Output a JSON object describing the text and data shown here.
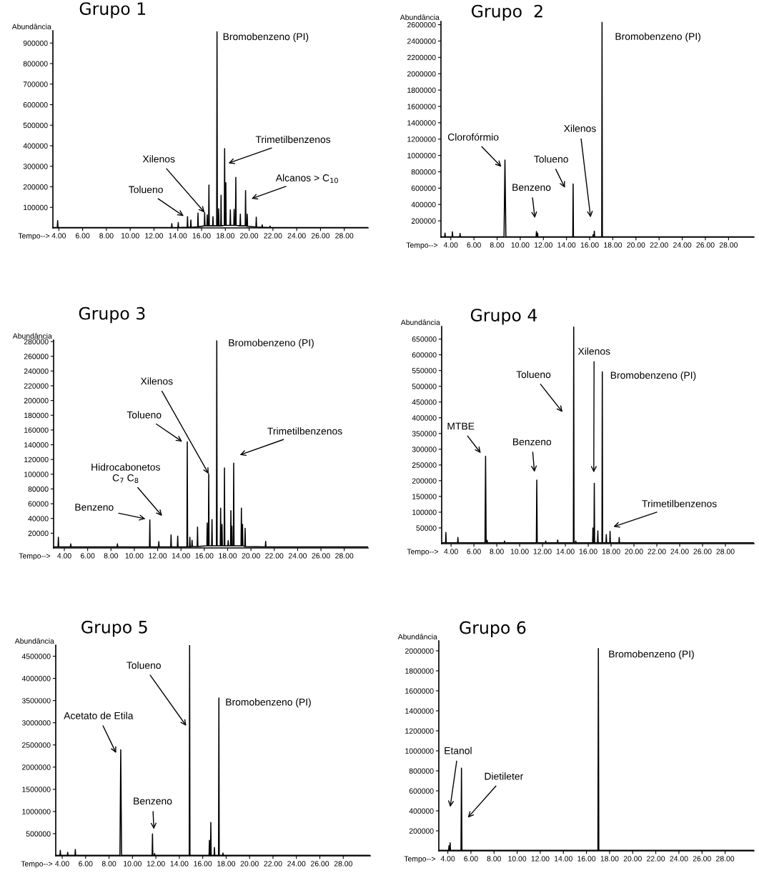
{
  "chart_data": [
    {
      "type": "line",
      "title": "Grupo 1",
      "xlabel": "Tempo-->",
      "ylabel": "Abundância",
      "xlim": [
        3.5,
        30
      ],
      "ylim": [
        0,
        960000
      ],
      "xticks": [
        {
          "value": 4,
          "label": "4.00"
        },
        {
          "value": 6,
          "label": "6.00"
        },
        {
          "value": 8,
          "label": "8.00"
        },
        {
          "value": 10,
          "label": "10.00"
        },
        {
          "value": 12,
          "label": "12.00"
        },
        {
          "value": 14,
          "label": "14.00"
        },
        {
          "value": 16,
          "label": "16.00"
        },
        {
          "value": 18,
          "label": "18.00"
        },
        {
          "value": 20,
          "label": "20.00"
        },
        {
          "value": 22,
          "label": "22.00"
        },
        {
          "value": 24,
          "label": "24.00"
        },
        {
          "value": 26,
          "label": "26.00"
        },
        {
          "value": 28,
          "label": "28.00"
        }
      ],
      "yticks": [
        100000,
        200000,
        300000,
        400000,
        500000,
        600000,
        700000,
        800000,
        900000
      ],
      "series": [
        {
          "color": "#000000",
          "x": [
            3.5,
            3.87,
            3.9,
            3.93,
            13.47,
            13.5,
            13.53,
            14.01,
            14.04,
            14.07,
            14.79,
            14.82,
            14.85,
            15.07,
            15.1,
            15.13,
            15.67,
            15.7,
            15.73,
            16.23,
            16.26,
            16.29,
            16.45,
            16.48,
            16.51,
            16.59,
            16.62,
            16.65,
            16.93,
            16.96,
            16.99,
            17.27,
            17.3,
            17.33,
            17.41,
            17.44,
            17.47,
            17.61,
            17.64,
            17.67,
            17.91,
            17.94,
            17.97,
            18.01,
            18.04,
            18.07,
            18.39,
            18.42,
            18.45,
            18.71,
            18.74,
            18.77,
            18.85,
            18.88,
            18.91,
            19.23,
            19.26,
            19.29,
            19.67,
            19.7,
            19.73,
            19.81,
            19.84,
            19.87,
            20.57,
            20.6,
            20.63,
            21.07,
            21.1,
            21.13,
            21.73,
            21.76,
            21.79,
            30
          ],
          "values": [
            2000,
            2000,
            36000,
            2000,
            2000,
            21000,
            2000,
            2000,
            26000,
            2000,
            3000,
            55000,
            3000,
            3000,
            38000,
            3000,
            5000,
            72000,
            5000,
            10000,
            75000,
            10000,
            10000,
            63000,
            10000,
            10000,
            209000,
            10000,
            10000,
            55000,
            10000,
            10000,
            955000,
            10000,
            10000,
            93000,
            10000,
            10000,
            159000,
            10000,
            12000,
            386000,
            12000,
            12000,
            220000,
            12000,
            12000,
            88000,
            12000,
            12000,
            90000,
            12000,
            12000,
            246000,
            12000,
            10000,
            67000,
            10000,
            10000,
            182000,
            10000,
            8000,
            67000,
            8000,
            4000,
            52000,
            4000,
            3000,
            15000,
            3000,
            2000,
            9000,
            2000,
            2000
          ]
        }
      ],
      "annotations": [
        "Tolueno",
        {
          "text": "Xilenos",
          "x": 16.26,
          "y": 75000
        },
        "Trimetilbenzenos",
        "Alcanos > C$_{10}$",
        {
          "text": "Bromobenzeno (PI)",
          "x": 17.3,
          "y": 955000
        }
      ]
    },
    {
      "type": "line",
      "title": "Grupo  2",
      "xlabel": "Tempo-->",
      "ylabel": "Abundância",
      "xlim": [
        3.15,
        30.2
      ],
      "ylim": [
        0,
        2640000
      ],
      "xticks": [
        {
          "value": 4,
          "label": "4.00"
        },
        {
          "value": 6,
          "label": "6.00"
        },
        {
          "value": 8,
          "label": "8.00"
        },
        {
          "value": 10,
          "label": "10.00"
        },
        {
          "value": 12,
          "label": "12.00"
        },
        {
          "value": 14,
          "label": "14.00"
        },
        {
          "value": 16,
          "label": "16.00"
        },
        {
          "value": 18,
          "label": "18.00"
        },
        {
          "value": 20,
          "label": "20.00"
        },
        {
          "value": 22,
          "label": "22.00"
        },
        {
          "value": 24,
          "label": "24.00"
        },
        {
          "value": 26,
          "label": "26.00"
        },
        {
          "value": 28,
          "label": "28.00"
        }
      ],
      "yticks": [
        200000,
        400000,
        600000,
        800000,
        1000000,
        1200000,
        1400000,
        1600000,
        1800000,
        2000000,
        2200000,
        2400000,
        2600000
      ],
      "series": [
        {
          "color": "#000000",
          "x": [
            3.15,
            3.47,
            3.5,
            3.53,
            4.11,
            4.14,
            4.17,
            4.77,
            4.8,
            4.83,
            8.6,
            8.68,
            8.76,
            11.37,
            11.4,
            11.43,
            11.47,
            11.5,
            11.53,
            14.54,
            14.57,
            14.6,
            16.27,
            16.3,
            16.33,
            16.37,
            16.4,
            16.43,
            17.04,
            17.07,
            17.1,
            30.2
          ],
          "values": [
            5000,
            5000,
            50000,
            5000,
            5000,
            66000,
            5000,
            5000,
            46000,
            5000,
            5000,
            943000,
            5000,
            5000,
            69000,
            5000,
            5000,
            50000,
            5000,
            5000,
            652000,
            5000,
            5000,
            31000,
            5000,
            5000,
            75000,
            5000,
            5000,
            2630000,
            5000,
            5000
          ]
        }
      ],
      "annotations": [
        "Clorofórmio",
        "Benzeno",
        "Tolueno",
        "Xilenos",
        {
          "text": "Bromobenzeno (PI)",
          "x": 17.07,
          "y": 2630000
        }
      ]
    },
    {
      "type": "line",
      "title": "Grupo 3",
      "xlabel": "Tempo-->",
      "ylabel": "Abundância",
      "xlim": [
        3.08,
        30.04
      ],
      "ylim": [
        0,
        282000
      ],
      "xticks": [
        {
          "value": 4,
          "label": "4.00"
        },
        {
          "value": 6,
          "label": "6.00"
        },
        {
          "value": 8,
          "label": "8.00"
        },
        {
          "value": 10,
          "label": "10.00"
        },
        {
          "value": 12,
          "label": "12.00"
        },
        {
          "value": 14,
          "label": "14.00"
        },
        {
          "value": 16,
          "label": "16.00"
        },
        {
          "value": 18,
          "label": "18.00"
        },
        {
          "value": 20,
          "label": "20.00"
        },
        {
          "value": 22,
          "label": "22.00"
        },
        {
          "value": 24,
          "label": "24.00"
        },
        {
          "value": 26,
          "label": "26.00"
        },
        {
          "value": 28,
          "label": "28.00"
        }
      ],
      "yticks": [
        20000,
        40000,
        60000,
        80000,
        100000,
        120000,
        140000,
        160000,
        180000,
        200000,
        220000,
        240000,
        260000,
        280000
      ],
      "series": [
        {
          "color": "#000000",
          "x": [
            3.08,
            3.46,
            3.49,
            3.52,
            4.52,
            4.55,
            4.58,
            8.52,
            8.55,
            8.58,
            11.3,
            11.33,
            11.36,
            12.07,
            12.1,
            12.13,
            13.12,
            13.15,
            13.18,
            13.69,
            13.72,
            13.75,
            14.51,
            14.54,
            14.57,
            14.73,
            14.76,
            14.79,
            14.92,
            14.95,
            14.98,
            15.39,
            15.42,
            15.45,
            16.22,
            16.25,
            16.28,
            16.35,
            16.38,
            16.41,
            16.63,
            16.66,
            16.69,
            17.04,
            17.07,
            17.1,
            17.37,
            17.4,
            17.43,
            17.49,
            17.52,
            17.55,
            17.7,
            17.73,
            17.76,
            18.02,
            18.05,
            18.08,
            18.25,
            18.28,
            18.31,
            18.33,
            18.36,
            18.39,
            18.49,
            18.52,
            18.55,
            19.15,
            19.18,
            19.21,
            19.25,
            19.28,
            19.31,
            19.47,
            19.5,
            19.53,
            21.23,
            21.26,
            21.29,
            30.04
          ],
          "values": [
            1500,
            1500,
            14500,
            1500,
            1500,
            5500,
            1500,
            1500,
            5500,
            1500,
            1500,
            38000,
            1500,
            1500,
            8700,
            1500,
            1500,
            17700,
            1500,
            1500,
            16000,
            1500,
            1500,
            144000,
            1500,
            1500,
            14500,
            1500,
            2000,
            10300,
            2000,
            2000,
            28300,
            2000,
            3000,
            34000,
            3000,
            3000,
            100400,
            3000,
            3000,
            38600,
            3000,
            3000,
            281000,
            3000,
            3000,
            54000,
            3000,
            3000,
            32000,
            3000,
            3000,
            108500,
            3000,
            3000,
            10000,
            3000,
            3000,
            50500,
            3000,
            3000,
            29600,
            3000,
            3000,
            115000,
            3000,
            3000,
            54000,
            3000,
            3000,
            32000,
            3000,
            2000,
            26700,
            2000,
            1500,
            9000,
            1500,
            1500
          ]
        }
      ],
      "annotations": [
        "Benzeno",
        "Hidrocabonetos\nC$_{7}$ C$_{8}$",
        "Tolueno",
        {
          "text": "Xilenos",
          "x": 16.38,
          "y": 100400
        },
        "Trimetilbenzenos",
        {
          "text": "Bromobenzeno (PI)",
          "x": 17.07,
          "y": 281000
        }
      ]
    },
    {
      "type": "line",
      "title": "Grupo 4",
      "xlabel": "Tempo-->",
      "ylabel": "Abundância",
      "xlim": [
        3.18,
        30.5
      ],
      "ylim": [
        0,
        690000
      ],
      "xticks": [
        {
          "value": 4,
          "label": "4.00"
        },
        {
          "value": 6,
          "label": "6.00"
        },
        {
          "value": 8,
          "label": "8.00"
        },
        {
          "value": 10,
          "label": "10.00"
        },
        {
          "value": 12,
          "label": "12.00"
        },
        {
          "value": 14,
          "label": "14.00"
        },
        {
          "value": 16,
          "label": "16.00"
        },
        {
          "value": 18,
          "label": "18.00"
        },
        {
          "value": 20,
          "label": "20.00"
        },
        {
          "value": 22,
          "label": "22.00"
        },
        {
          "value": 24,
          "label": "24.00"
        },
        {
          "value": 26,
          "label": "26.00"
        },
        {
          "value": 28,
          "label": "28.00"
        }
      ],
      "yticks": [
        50000,
        100000,
        150000,
        200000,
        250000,
        300000,
        350000,
        400000,
        450000,
        500000,
        550000,
        600000,
        650000
      ],
      "series": [
        {
          "color": "#000000",
          "x": [
            3.18,
            3.52,
            3.55,
            3.58,
            4.57,
            4.6,
            4.63,
            6.97,
            7.02,
            7.07,
            7.13,
            7.16,
            7.19,
            8.65,
            8.68,
            8.71,
            11.46,
            11.5,
            11.54,
            12.25,
            12.28,
            12.31,
            13.3,
            13.33,
            13.36,
            14.7,
            14.73,
            14.76,
            14.88,
            14.91,
            14.94,
            16.38,
            16.41,
            16.44,
            16.5,
            16.53,
            16.56,
            16.81,
            16.84,
            16.87,
            17.2,
            17.23,
            17.26,
            17.55,
            17.58,
            17.61,
            17.88,
            17.91,
            17.94,
            18.68,
            18.71,
            18.74,
            30.5
          ],
          "values": [
            3000,
            3000,
            35500,
            3000,
            3000,
            19700,
            3000,
            3000,
            277700,
            3000,
            3000,
            10600,
            3000,
            3000,
            8300,
            3000,
            3000,
            202000,
            3000,
            3000,
            8300,
            3000,
            3000,
            12100,
            3000,
            3000,
            688000,
            3000,
            3000,
            8300,
            3000,
            3000,
            50000,
            3000,
            3000,
            192000,
            3000,
            3000,
            40900,
            3000,
            3000,
            546000,
            3000,
            3000,
            28800,
            3000,
            3000,
            39300,
            3000,
            3000,
            19700,
            3000,
            3000
          ]
        }
      ],
      "annotations": [
        "MTBE",
        "Benzeno",
        "Tolueno",
        "Xilenos",
        "Trimetilbenzenos",
        {
          "text": "Bromobenzeno (PI)",
          "x": 17.23,
          "y": 546000
        }
      ]
    },
    {
      "type": "line",
      "title": "Grupo 5",
      "xlabel": "Tempo-->",
      "ylabel": "Abundância",
      "xlim": [
        3.45,
        30.3
      ],
      "ylim": [
        0,
        4750000
      ],
      "xticks": [
        {
          "value": 4,
          "label": "4.00"
        },
        {
          "value": 6,
          "label": "6.00"
        },
        {
          "value": 8,
          "label": "8.00"
        },
        {
          "value": 10,
          "label": "10.00"
        },
        {
          "value": 12,
          "label": "12.00"
        },
        {
          "value": 14,
          "label": "14.00"
        },
        {
          "value": 16,
          "label": "16.00"
        },
        {
          "value": 18,
          "label": "18.00"
        },
        {
          "value": 20,
          "label": "20.00"
        },
        {
          "value": 22,
          "label": "22.00"
        },
        {
          "value": 24,
          "label": "24.00"
        },
        {
          "value": 26,
          "label": "26.00"
        },
        {
          "value": 28,
          "label": "28.00"
        }
      ],
      "yticks": [
        500000,
        1000000,
        1500000,
        2000000,
        2500000,
        3000000,
        3500000,
        4000000,
        4500000
      ],
      "series": [
        {
          "color": "#000000",
          "x": [
            3.45,
            3.81,
            3.84,
            3.87,
            4.44,
            4.47,
            4.5,
            5.09,
            5.12,
            5.15,
            8.93,
            9.0,
            9.07,
            11.68,
            11.71,
            11.74,
            11.86,
            11.89,
            11.92,
            14.85,
            14.88,
            14.91,
            16.54,
            16.57,
            16.6,
            16.66,
            16.69,
            16.72,
            16.97,
            17.0,
            17.03,
            17.35,
            17.38,
            17.41,
            17.7,
            17.73,
            17.76,
            30.3
          ],
          "values": [
            10000,
            10000,
            123000,
            10000,
            10000,
            80000,
            10000,
            10000,
            145000,
            10000,
            10000,
            2390000,
            10000,
            10000,
            494000,
            10000,
            10000,
            54000,
            10000,
            10000,
            4740000,
            10000,
            10000,
            349000,
            10000,
            10000,
            752000,
            10000,
            10000,
            188000,
            10000,
            10000,
            3560000,
            10000,
            10000,
            64000,
            10000,
            10000
          ]
        }
      ],
      "annotations": [
        "Acetato de Etila",
        "Benzeno",
        "Tolueno",
        {
          "text": "Bromobenzeno (PI)",
          "x": 17.38,
          "y": 3560000
        }
      ]
    },
    {
      "type": "line",
      "title": "Grupo 6",
      "xlabel": "Tempo-->",
      "ylabel": "Abundância",
      "xlim": [
        3.22,
        30.5
      ],
      "ylim": [
        0,
        2100000
      ],
      "xticks": [
        {
          "value": 4,
          "label": "4.00"
        },
        {
          "value": 6,
          "label": "6.00"
        },
        {
          "value": 8,
          "label": "8.00"
        },
        {
          "value": 10,
          "label": "10.00"
        },
        {
          "value": 12,
          "label": "12.00"
        },
        {
          "value": 14,
          "label": "14.00"
        },
        {
          "value": 16,
          "label": "16.00"
        },
        {
          "value": 18,
          "label": "18.00"
        },
        {
          "value": 20,
          "label": "20.00"
        },
        {
          "value": 22,
          "label": "22.00"
        },
        {
          "value": 24,
          "label": "24.00"
        },
        {
          "value": 26,
          "label": "26.00"
        },
        {
          "value": 28,
          "label": "28.00"
        }
      ],
      "yticks": [
        200000,
        400000,
        600000,
        800000,
        1000000,
        1200000,
        1400000,
        1600000,
        1800000,
        2000000
      ],
      "series": [
        {
          "color": "#000000",
          "x": [
            3.22,
            4.07,
            4.1,
            4.13,
            4.17,
            4.2,
            4.23,
            5.14,
            5.18,
            5.22,
            16.99,
            17.03,
            17.07,
            30.5
          ],
          "values": [
            5000,
            5000,
            52000,
            5000,
            5000,
            81000,
            5000,
            5000,
            826000,
            5000,
            5000,
            2024000,
            5000,
            5000
          ]
        }
      ],
      "annotations": [
        "Etanol",
        "Dietileter",
        {
          "text": "Bromobenzeno (PI)",
          "x": 17.03,
          "y": 2024000
        }
      ]
    }
  ]
}
